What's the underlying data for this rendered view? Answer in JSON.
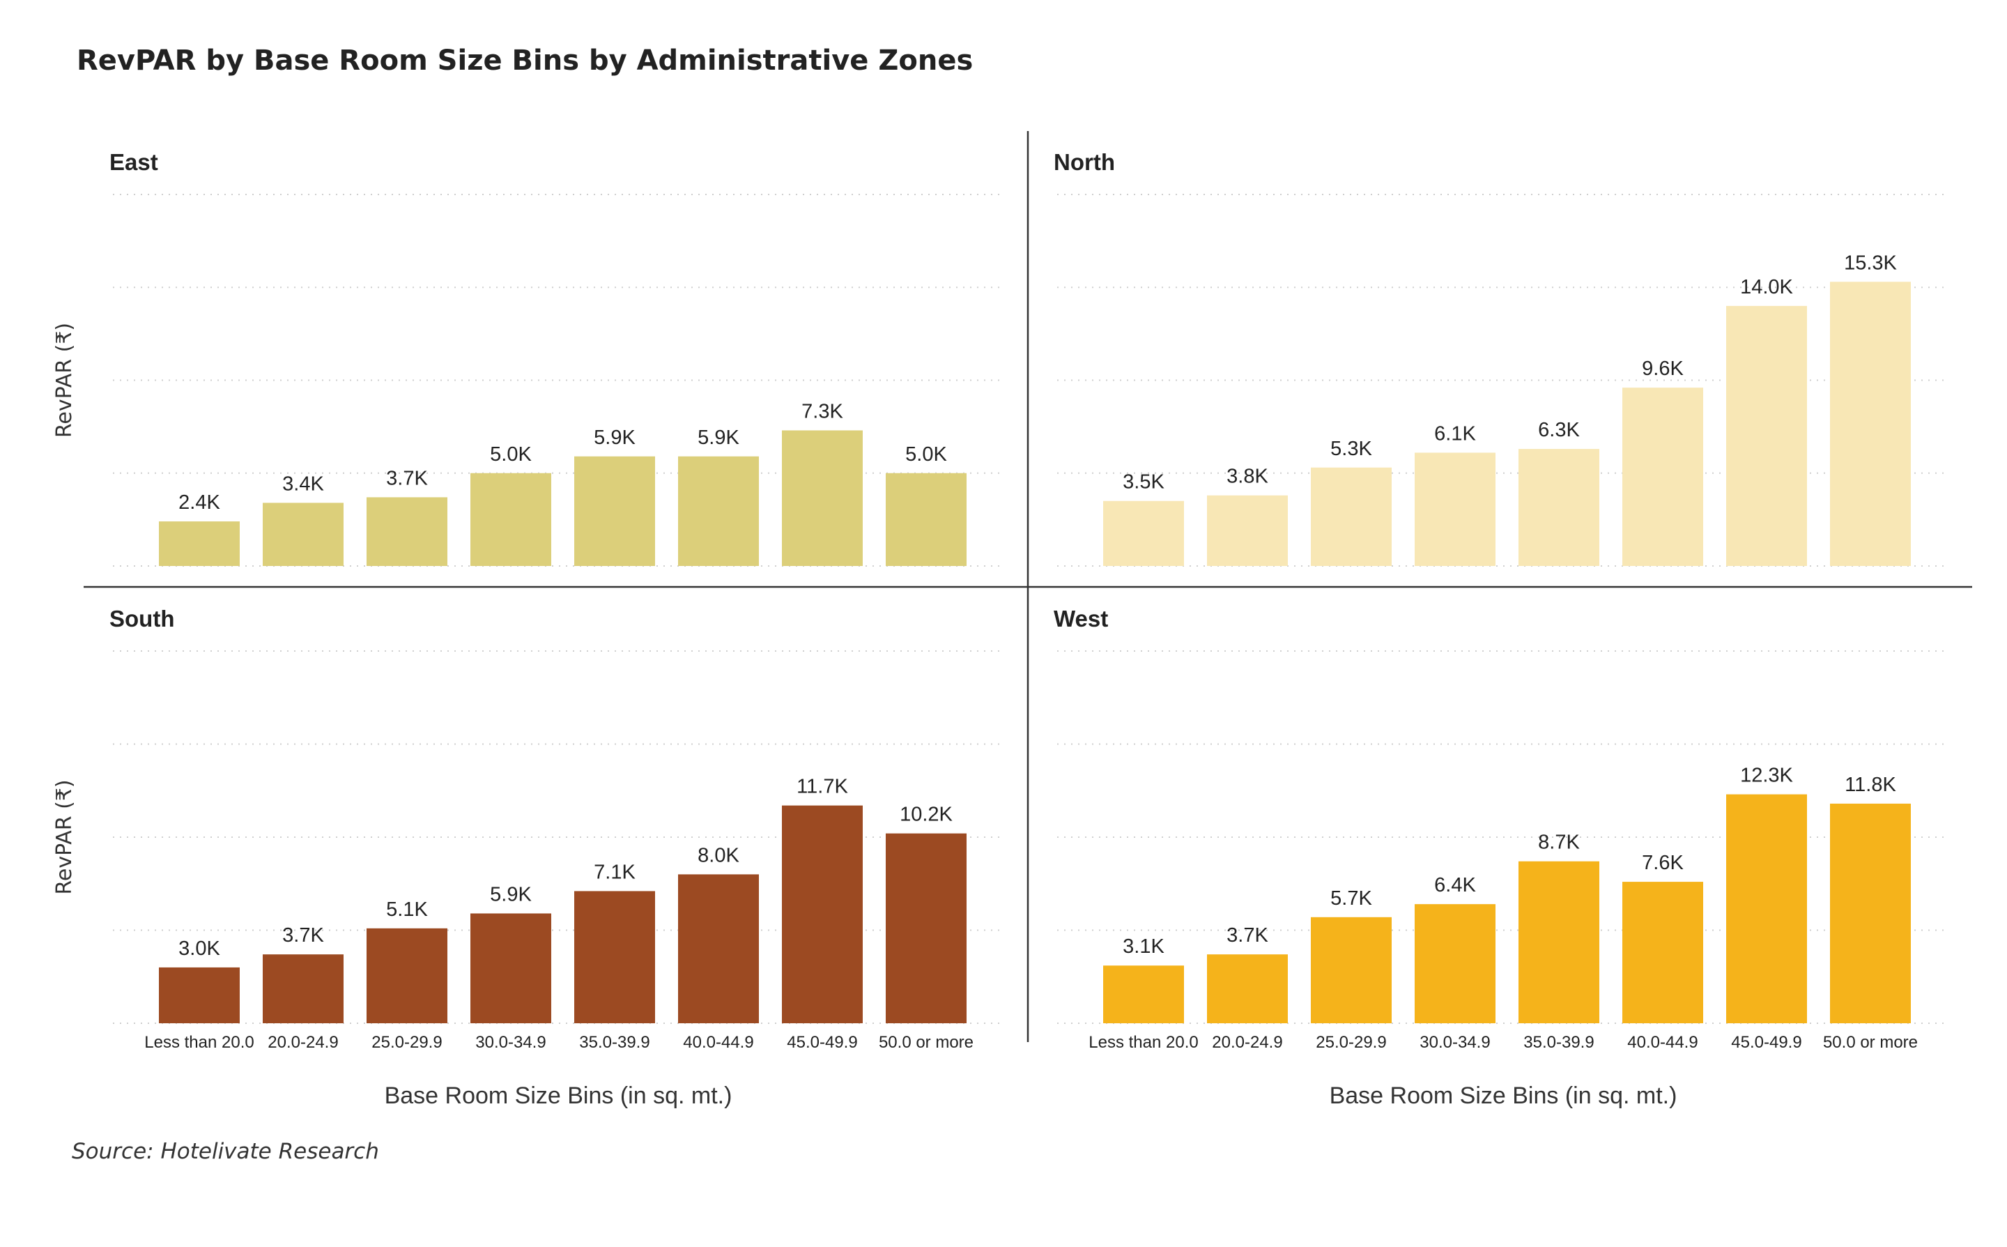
{
  "chart_data": {
    "type": "bar",
    "title": "RevPAR by Base Room Size Bins by Administrative Zones",
    "source": "Source: Hotelivate Research",
    "xlabel": "Base Room Size Bins (in sq. mt.)",
    "ylabel": "RevPAR (₹)",
    "ylim": [
      0,
      20000
    ],
    "yticks": [
      0,
      5000,
      10000,
      15000,
      20000
    ],
    "grid": true,
    "categories": [
      "Less than 20.0",
      "20.0-24.9",
      "25.0-29.9",
      "30.0-34.9",
      "35.0-39.9",
      "40.0-44.9",
      "45.0-49.9",
      "50.0 or more"
    ],
    "panels": [
      {
        "name": "East",
        "color": "#DCCF7A",
        "values": [
          2400,
          3400,
          3700,
          5000,
          5900,
          5900,
          7300,
          5000
        ],
        "labels": [
          "2.4K",
          "3.4K",
          "3.7K",
          "5.0K",
          "5.9K",
          "5.9K",
          "7.3K",
          "5.0K"
        ]
      },
      {
        "name": "North",
        "color": "#F8E7B5",
        "values": [
          3500,
          3800,
          5300,
          6100,
          6300,
          9600,
          14000,
          15300
        ],
        "labels": [
          "3.5K",
          "3.8K",
          "5.3K",
          "6.1K",
          "6.3K",
          "9.6K",
          "14.0K",
          "15.3K"
        ]
      },
      {
        "name": "South",
        "color": "#9C4A22",
        "values": [
          3000,
          3700,
          5100,
          5900,
          7100,
          8000,
          11700,
          10200
        ],
        "labels": [
          "3.0K",
          "3.7K",
          "5.1K",
          "5.9K",
          "7.1K",
          "8.0K",
          "11.7K",
          "10.2K"
        ]
      },
      {
        "name": "West",
        "color": "#F5B31B",
        "values": [
          3100,
          3700,
          5700,
          6400,
          8700,
          7600,
          12300,
          11800
        ],
        "labels": [
          "3.1K",
          "3.7K",
          "5.7K",
          "6.4K",
          "8.7K",
          "7.6K",
          "12.3K",
          "11.8K"
        ]
      }
    ]
  }
}
